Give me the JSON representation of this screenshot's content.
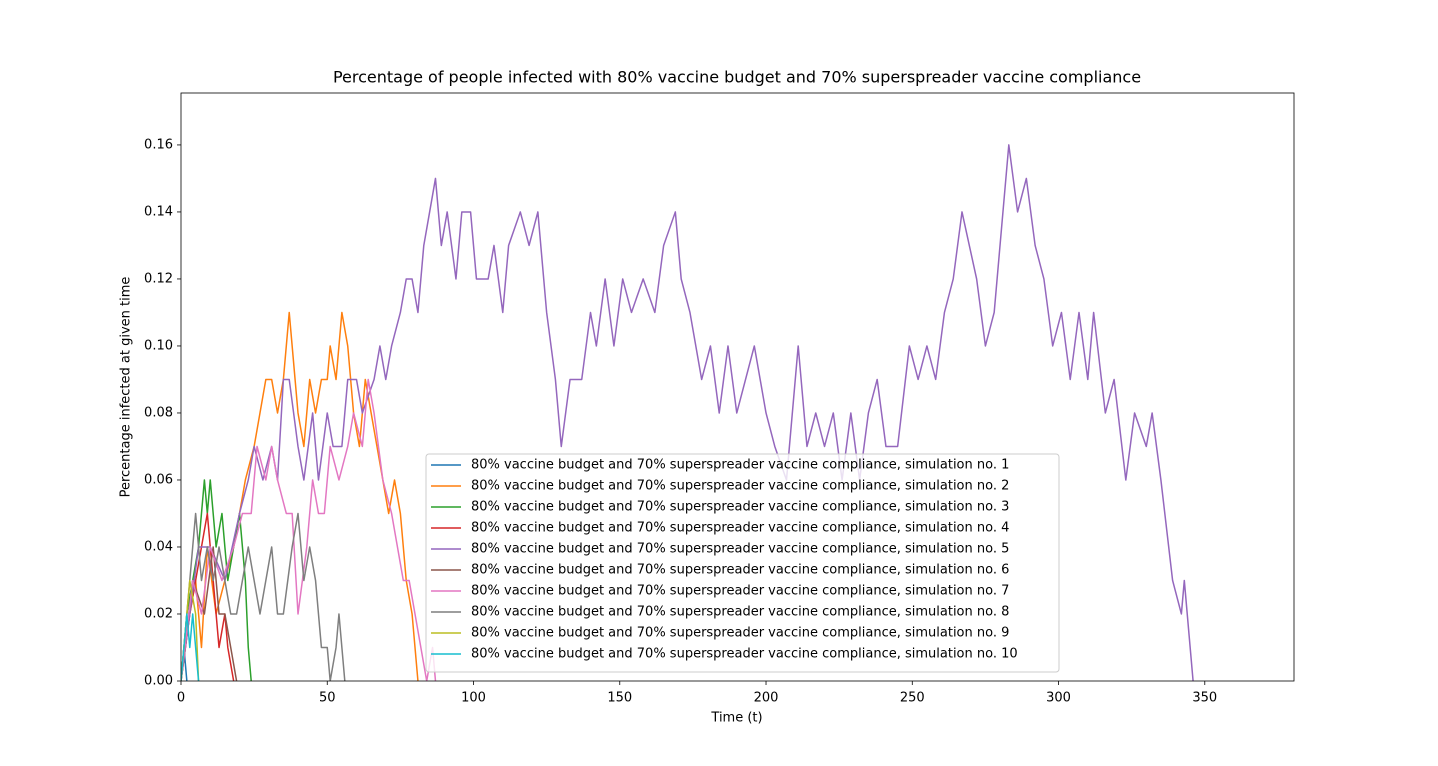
{
  "chart_data": {
    "type": "line",
    "title": "Percentage of people infected with 80% vaccine budget and 70% superspreader vaccine compliance",
    "x_label": "Time (t)",
    "y_label": "Percentage infected at given time",
    "xlim": [
      0,
      380.5
    ],
    "ylim": [
      0,
      0.1755
    ],
    "xticks": [
      0,
      50,
      100,
      150,
      200,
      250,
      300,
      350
    ],
    "yticks": [
      {
        "value": 0,
        "label": "0.00"
      },
      {
        "value": 0.02,
        "label": "0.02"
      },
      {
        "value": 0.04,
        "label": "0.04"
      },
      {
        "value": 0.06,
        "label": "0.06"
      },
      {
        "value": 0.08,
        "label": "0.08"
      },
      {
        "value": 0.1,
        "label": "0.10"
      },
      {
        "value": 0.12,
        "label": "0.12"
      },
      {
        "value": 0.14,
        "label": "0.14"
      },
      {
        "value": 0.16,
        "label": "0.16"
      }
    ],
    "grid": false,
    "legend": "lower center",
    "series": [
      {
        "name": "80% vaccine budget and 70% superspreader vaccine compliance, simulation no. 1",
        "color": "#1f77b4",
        "x": [
          0,
          1,
          2
        ],
        "values": [
          0,
          0.01,
          0
        ]
      },
      {
        "name": "80% vaccine budget and 70% superspreader vaccine compliance, simulation no. 2",
        "color": "#ff7f0e",
        "x": [
          0,
          3,
          5,
          7,
          9,
          12,
          15,
          18,
          20,
          22,
          25,
          27,
          29,
          31,
          33,
          35,
          37,
          40,
          42,
          44,
          46,
          48,
          50,
          51,
          53,
          55,
          57,
          59,
          61,
          63,
          65,
          67,
          69,
          71,
          73,
          75,
          77,
          79,
          81
        ],
        "values": [
          0,
          0.02,
          0.03,
          0.01,
          0.04,
          0.02,
          0.03,
          0.04,
          0.05,
          0.06,
          0.07,
          0.08,
          0.09,
          0.09,
          0.08,
          0.09,
          0.11,
          0.08,
          0.07,
          0.09,
          0.08,
          0.09,
          0.09,
          0.1,
          0.09,
          0.11,
          0.1,
          0.08,
          0.07,
          0.09,
          0.08,
          0.07,
          0.06,
          0.05,
          0.06,
          0.05,
          0.03,
          0.02,
          0
        ]
      },
      {
        "name": "80% vaccine budget and 70% superspreader vaccine compliance, simulation no. 3",
        "color": "#2ca02c",
        "x": [
          0,
          2,
          4,
          6,
          8,
          9,
          10,
          12,
          14,
          16,
          18,
          20,
          22,
          23,
          24
        ],
        "values": [
          0,
          0.02,
          0.03,
          0.04,
          0.06,
          0.05,
          0.06,
          0.04,
          0.05,
          0.03,
          0.04,
          0.05,
          0.03,
          0.01,
          0
        ]
      },
      {
        "name": "80% vaccine budget and 70% superspreader vaccine compliance, simulation no. 4",
        "color": "#d62728",
        "x": [
          0,
          3,
          5,
          7,
          9,
          11,
          13,
          15,
          16,
          18
        ],
        "values": [
          0,
          0.02,
          0.03,
          0.04,
          0.05,
          0.03,
          0.01,
          0.02,
          0.01,
          0
        ]
      },
      {
        "name": "80% vaccine budget and 70% superspreader vaccine compliance, simulation no. 5",
        "color": "#9467bd",
        "x": [
          0,
          3,
          6,
          10,
          15,
          20,
          23,
          25,
          28,
          31,
          33,
          35,
          37,
          40,
          42,
          45,
          47,
          50,
          52,
          55,
          57,
          60,
          62,
          66,
          68,
          70,
          72,
          75,
          77,
          79,
          81,
          83,
          85,
          87,
          89,
          91,
          94,
          96,
          99,
          101,
          105,
          107,
          110,
          112,
          116,
          119,
          122,
          125,
          128,
          130,
          133,
          137,
          140,
          142,
          145,
          148,
          151,
          154,
          158,
          162,
          165,
          169,
          171,
          174,
          178,
          181,
          184,
          187,
          190,
          193,
          196,
          200,
          203,
          207,
          211,
          214,
          217,
          220,
          223,
          226,
          229,
          232,
          235,
          238,
          241,
          245,
          249,
          252,
          255,
          258,
          261,
          264,
          267,
          272,
          275,
          278,
          283,
          286,
          289,
          292,
          295,
          298,
          301,
          304,
          307,
          310,
          312,
          316,
          319,
          323,
          326,
          330,
          332,
          335,
          339,
          342,
          343,
          346
        ],
        "values": [
          0,
          0.02,
          0.04,
          0.04,
          0.03,
          0.05,
          0.06,
          0.07,
          0.06,
          0.07,
          0.06,
          0.09,
          0.09,
          0.07,
          0.06,
          0.08,
          0.06,
          0.08,
          0.07,
          0.07,
          0.09,
          0.09,
          0.08,
          0.09,
          0.1,
          0.09,
          0.1,
          0.11,
          0.12,
          0.12,
          0.11,
          0.13,
          0.14,
          0.15,
          0.13,
          0.14,
          0.12,
          0.14,
          0.14,
          0.12,
          0.12,
          0.13,
          0.11,
          0.13,
          0.14,
          0.13,
          0.14,
          0.11,
          0.09,
          0.07,
          0.09,
          0.09,
          0.11,
          0.1,
          0.12,
          0.1,
          0.12,
          0.11,
          0.12,
          0.11,
          0.13,
          0.14,
          0.12,
          0.11,
          0.09,
          0.1,
          0.08,
          0.1,
          0.08,
          0.09,
          0.1,
          0.08,
          0.07,
          0.06,
          0.1,
          0.07,
          0.08,
          0.07,
          0.08,
          0.06,
          0.08,
          0.06,
          0.08,
          0.09,
          0.07,
          0.07,
          0.1,
          0.09,
          0.1,
          0.09,
          0.11,
          0.12,
          0.14,
          0.12,
          0.1,
          0.11,
          0.16,
          0.14,
          0.15,
          0.13,
          0.12,
          0.1,
          0.11,
          0.09,
          0.11,
          0.09,
          0.11,
          0.08,
          0.09,
          0.06,
          0.08,
          0.07,
          0.08,
          0.06,
          0.03,
          0.02,
          0.03,
          0
        ]
      },
      {
        "name": "80% vaccine budget and 70% superspreader vaccine compliance, simulation no. 6",
        "color": "#8c564b",
        "x": [
          0,
          4,
          8,
          11,
          13,
          15,
          17,
          19
        ],
        "values": [
          0,
          0.03,
          0.02,
          0.04,
          0.02,
          0.02,
          0.01,
          0
        ]
      },
      {
        "name": "80% vaccine budget and 70% superspreader vaccine compliance, simulation no. 7",
        "color": "#e377c2",
        "x": [
          0,
          4,
          7,
          10,
          14,
          18,
          21,
          24,
          26,
          29,
          31,
          33,
          36,
          38,
          40,
          43,
          45,
          47,
          49,
          51,
          54,
          57,
          59,
          62,
          64,
          66,
          69,
          72,
          74,
          76,
          78,
          80,
          82,
          84,
          86,
          87
        ],
        "values": [
          0,
          0.03,
          0.02,
          0.04,
          0.03,
          0.04,
          0.05,
          0.05,
          0.07,
          0.06,
          0.07,
          0.06,
          0.05,
          0.05,
          0.02,
          0.04,
          0.06,
          0.05,
          0.05,
          0.07,
          0.06,
          0.07,
          0.08,
          0.07,
          0.09,
          0.08,
          0.06,
          0.05,
          0.04,
          0.03,
          0.03,
          0.02,
          0.01,
          0,
          0.01,
          0
        ]
      },
      {
        "name": "80% vaccine budget and 70% superspreader vaccine compliance, simulation no. 8",
        "color": "#7f7f7f",
        "x": [
          0,
          2,
          4,
          5,
          7,
          9,
          11,
          13,
          15,
          17,
          19,
          21,
          23,
          25,
          27,
          29,
          31,
          33,
          35,
          38,
          40,
          42,
          44,
          46,
          48,
          50,
          51,
          53,
          54,
          56
        ],
        "values": [
          0,
          0.02,
          0.04,
          0.05,
          0.03,
          0.04,
          0.03,
          0.04,
          0.03,
          0.02,
          0.02,
          0.03,
          0.04,
          0.03,
          0.02,
          0.03,
          0.04,
          0.02,
          0.02,
          0.04,
          0.05,
          0.03,
          0.04,
          0.03,
          0.01,
          0.01,
          0,
          0.01,
          0.02,
          0
        ]
      },
      {
        "name": "80% vaccine budget and 70% superspreader vaccine compliance, simulation no. 9",
        "color": "#bcbd22",
        "x": [
          0,
          2,
          3,
          5,
          6
        ],
        "values": [
          0,
          0.02,
          0.03,
          0.02,
          0
        ]
      },
      {
        "name": "80% vaccine budget and 70% superspreader vaccine compliance, simulation no. 10",
        "color": "#17becf",
        "x": [
          0,
          1,
          2,
          3,
          4,
          5,
          6
        ],
        "values": [
          0,
          0.01,
          0.02,
          0.01,
          0.02,
          0.01,
          0
        ]
      }
    ]
  }
}
